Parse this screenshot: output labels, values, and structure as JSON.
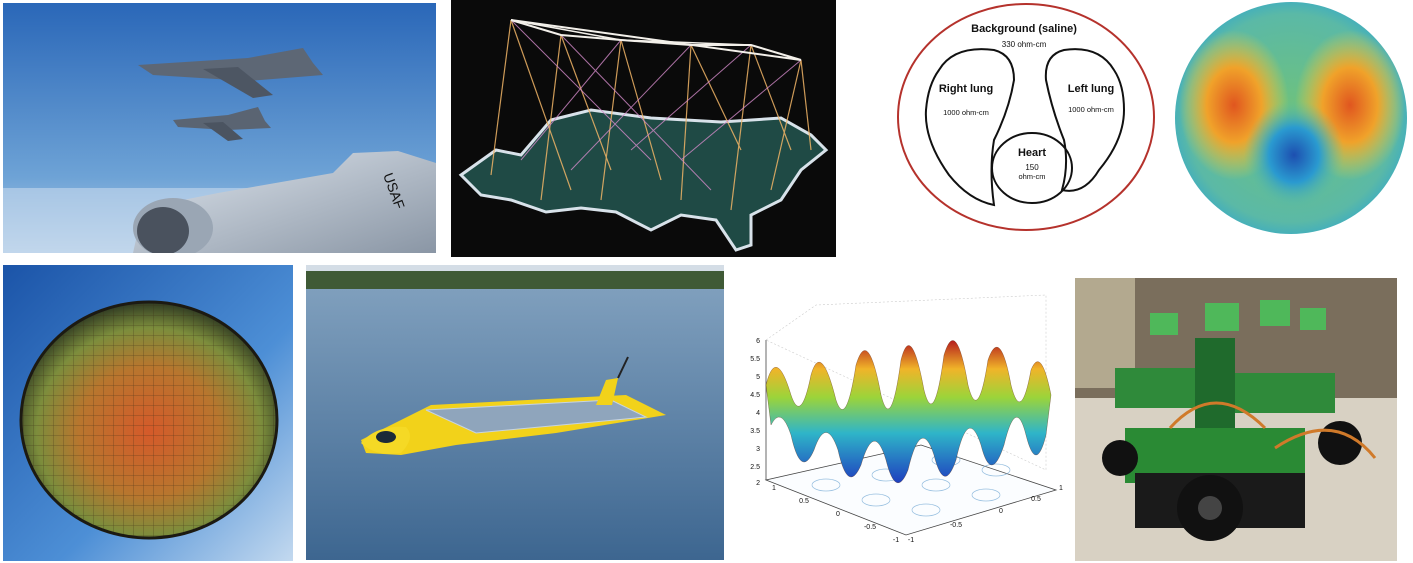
{
  "panels": {
    "jets": {
      "caption": ""
    },
    "network": {
      "caption": ""
    },
    "lung_diagram": {
      "background_label": "Background (saline)",
      "background_value": "330 ohm-cm",
      "right_lung_label": "Right lung",
      "right_lung_value": "1000 ohm-cm",
      "left_lung_label": "Left lung",
      "left_lung_value": "1000 ohm-cm",
      "heart_label": "Heart",
      "heart_value": "150",
      "heart_unit": "ohm-cm"
    },
    "lung_reconstruction": {
      "caption": ""
    },
    "wafer": {
      "caption": ""
    },
    "boat": {
      "caption": ""
    },
    "surface_plot": {
      "z_ticks": [
        "6",
        "5.5",
        "5",
        "4.5",
        "4",
        "3.5",
        "3",
        "2.5",
        "2"
      ],
      "x_ticks": [
        "1",
        "0.5",
        "0",
        "-0.5",
        "-1"
      ],
      "y_ticks": [
        "-1",
        "-0.5",
        "0",
        "0.5",
        "1"
      ]
    },
    "robots": {
      "caption": ""
    }
  },
  "colors": {
    "sky_top": "#2f6fc0",
    "sky_bottom": "#a9cbe8",
    "night": "#0b0b0b",
    "map_fill": "#1f4a45",
    "lung_border": "#b5322c",
    "water": "#4a6f95",
    "boat_yellow": "#f2d21a"
  }
}
